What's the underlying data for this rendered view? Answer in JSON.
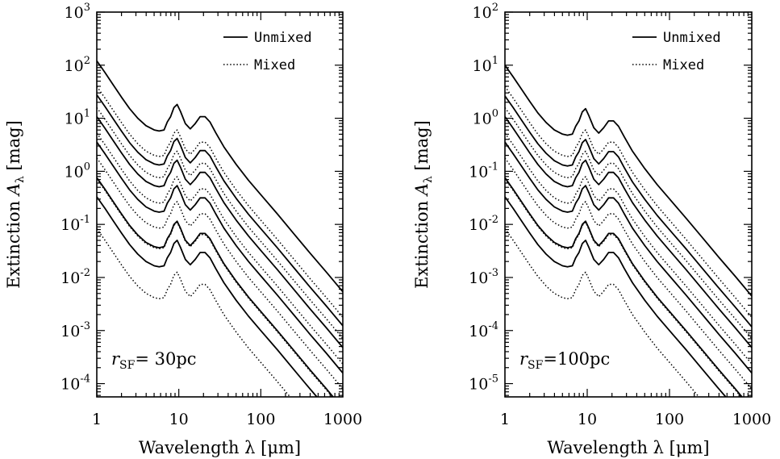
{
  "chart_data": [
    {
      "type": "line",
      "panel": "left",
      "xlabel": "Wavelength λ [μm]",
      "ylabel_prefix": "Extinction ",
      "ylabel_var": "A",
      "ylabel_sub": "λ",
      "ylabel_unit": " [mag]",
      "x_scale": "log",
      "y_scale": "log",
      "xlim": [
        1,
        1000
      ],
      "ylim_exp": [
        -4.25,
        3
      ],
      "x_ticks": [
        "1",
        "10",
        "100",
        "1000"
      ],
      "y_tick_exponents": [
        "3",
        "2",
        "1",
        "0",
        "-1",
        "-2",
        "-3",
        "-4"
      ],
      "legend": {
        "placement": "top-right",
        "entries": [
          "Unmixed",
          "Mixed"
        ]
      },
      "annotation": {
        "var": "r",
        "sub": "SF",
        "text": "=  30pc"
      },
      "series": [
        {
          "style": "Unmixed",
          "log_A_at_1um": 2.08
        },
        {
          "style": "Unmixed",
          "log_A_at_1um": 1.44
        },
        {
          "style": "Unmixed",
          "log_A_at_1um": 1.03
        },
        {
          "style": "Unmixed",
          "log_A_at_1um": 0.55
        },
        {
          "style": "Unmixed",
          "log_A_at_1um": -0.12
        },
        {
          "style": "Unmixed",
          "log_A_at_1um": -0.48
        },
        {
          "style": "Mixed",
          "log_A_at_1um": 1.6
        },
        {
          "style": "Mixed",
          "log_A_at_1um": 1.2
        },
        {
          "style": "Mixed",
          "log_A_at_1um": 0.72
        },
        {
          "style": "Mixed",
          "log_A_at_1um": 0.25
        },
        {
          "style": "Mixed",
          "log_A_at_1um": -0.14
        },
        {
          "style": "Mixed",
          "log_A_at_1um": -1.08
        }
      ]
    },
    {
      "type": "line",
      "panel": "right",
      "xlabel": "Wavelength λ [μm]",
      "ylabel_prefix": "Extinction ",
      "ylabel_var": "A",
      "ylabel_sub": "λ",
      "ylabel_unit": " [mag]",
      "x_scale": "log",
      "y_scale": "log",
      "xlim": [
        1,
        1000
      ],
      "ylim_exp": [
        -5.25,
        2
      ],
      "x_ticks": [
        "1",
        "10",
        "100",
        "1000"
      ],
      "y_tick_exponents": [
        "2",
        "1",
        "0",
        "-1",
        "-2",
        "-3",
        "-4",
        "-5"
      ],
      "legend": {
        "placement": "top-right",
        "entries": [
          "Unmixed",
          "Mixed"
        ]
      },
      "annotation": {
        "var": "r",
        "sub": "SF",
        "text": "=100pc"
      },
      "series": [
        {
          "style": "Unmixed",
          "log_A_at_1um": 1.0
        },
        {
          "style": "Unmixed",
          "log_A_at_1um": 0.42
        },
        {
          "style": "Unmixed",
          "log_A_at_1um": 0.03
        },
        {
          "style": "Unmixed",
          "log_A_at_1um": -0.45
        },
        {
          "style": "Unmixed",
          "log_A_at_1um": -1.12
        },
        {
          "style": "Unmixed",
          "log_A_at_1um": -1.48
        },
        {
          "style": "Mixed",
          "log_A_at_1um": 0.6
        },
        {
          "style": "Mixed",
          "log_A_at_1um": 0.2
        },
        {
          "style": "Mixed",
          "log_A_at_1um": -0.28
        },
        {
          "style": "Mixed",
          "log_A_at_1um": -0.75
        },
        {
          "style": "Mixed",
          "log_A_at_1um": -1.14
        },
        {
          "style": "Mixed",
          "log_A_at_1um": -2.08
        }
      ]
    }
  ]
}
